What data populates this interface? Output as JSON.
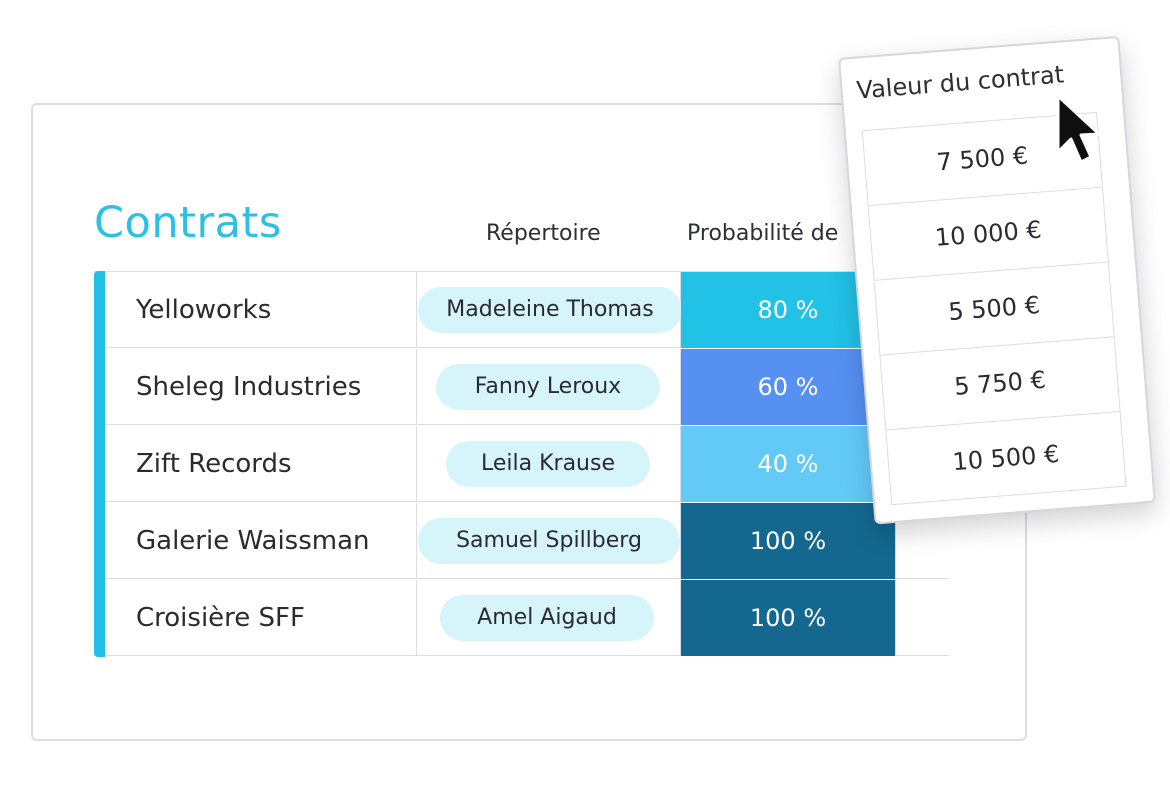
{
  "title": "Contrats",
  "columns": {
    "repertoire": "Répertoire",
    "probabilite": "Probabilité de"
  },
  "rows": [
    {
      "name": "Yelloworks",
      "contact": "Madeleine Thomas",
      "probability": "80 %",
      "color": "#22c1e6"
    },
    {
      "name": "Sheleg Industries",
      "contact": "Fanny Leroux",
      "probability": "60 %",
      "color": "#5690f1"
    },
    {
      "name": "Zift Records",
      "contact": "Leila Krause",
      "probability": "40 %",
      "color": "#63c9f6"
    },
    {
      "name": "Galerie Waissman",
      "contact": "Samuel Spillberg",
      "probability": "100 %",
      "color": "#14688f"
    },
    {
      "name": "Croisière SFF",
      "contact": "Amel Aigaud",
      "probability": "100 %",
      "color": "#14688f"
    }
  ],
  "popup": {
    "header": "Valeur du contrat",
    "values": [
      "7 500 €",
      "10 000 €",
      "5 500 €",
      "5 750 €",
      "10 500 €"
    ]
  },
  "colors": {
    "accent": "#22c0e6",
    "chip_bg": "#d6f5fb",
    "title": "#2cc0e4"
  },
  "cursor": "arrow-cursor-icon"
}
